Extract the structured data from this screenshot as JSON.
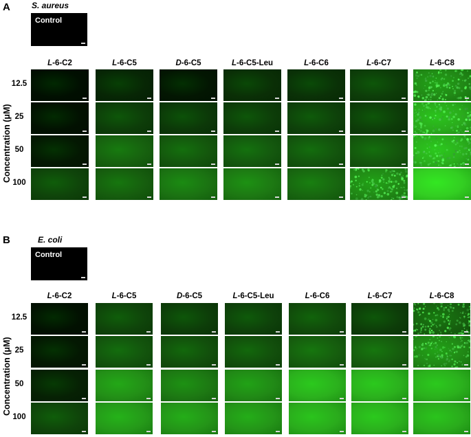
{
  "panels": [
    {
      "letter": "A",
      "organism": "S. aureus",
      "control_label": "Control",
      "y_axis_label": "Concentration (μM)",
      "columns": [
        {
          "prefix": "L",
          "suffix": "-6-C2"
        },
        {
          "prefix": "L",
          "suffix": "-6-C5"
        },
        {
          "prefix": "D",
          "suffix": "-6-C5"
        },
        {
          "prefix": "L",
          "suffix": "-6-C5-Leu"
        },
        {
          "prefix": "L",
          "suffix": "-6-C6"
        },
        {
          "prefix": "L",
          "suffix": "-6-C7"
        },
        {
          "prefix": "L",
          "suffix": "-6-C8"
        }
      ],
      "rows": [
        "12.5",
        "25",
        "50",
        "100"
      ],
      "fluorescence_intensity": [
        [
          0.02,
          0.12,
          0.05,
          0.16,
          0.17,
          0.22,
          0.55
        ],
        [
          0.03,
          0.22,
          0.2,
          0.22,
          0.24,
          0.22,
          0.7
        ],
        [
          0.06,
          0.38,
          0.33,
          0.34,
          0.32,
          0.33,
          0.72
        ],
        [
          0.25,
          0.36,
          0.45,
          0.48,
          0.4,
          0.55,
          0.85
        ]
      ],
      "speckled": [
        [
          false,
          false,
          false,
          false,
          false,
          false,
          true
        ],
        [
          false,
          false,
          false,
          false,
          false,
          false,
          true
        ],
        [
          false,
          false,
          false,
          false,
          false,
          false,
          true
        ],
        [
          false,
          false,
          false,
          false,
          false,
          true,
          false
        ]
      ]
    },
    {
      "letter": "B",
      "organism": "E. coli",
      "control_label": "Control",
      "y_axis_label": "Concentration (μM)",
      "columns": [
        {
          "prefix": "L",
          "suffix": "-6-C2"
        },
        {
          "prefix": "L",
          "suffix": "-6-C5"
        },
        {
          "prefix": "D",
          "suffix": "-6-C5"
        },
        {
          "prefix": "L",
          "suffix": "-6-C5-Leu"
        },
        {
          "prefix": "L",
          "suffix": "-6-C6"
        },
        {
          "prefix": "L",
          "suffix": "-6-C7"
        },
        {
          "prefix": "L",
          "suffix": "-6-C8"
        }
      ],
      "rows": [
        "12.5",
        "25",
        "50",
        "100"
      ],
      "fluorescence_intensity": [
        [
          0.03,
          0.25,
          0.22,
          0.24,
          0.28,
          0.22,
          0.38
        ],
        [
          0.06,
          0.32,
          0.3,
          0.3,
          0.36,
          0.36,
          0.55
        ],
        [
          0.1,
          0.58,
          0.48,
          0.55,
          0.72,
          0.72,
          0.72
        ],
        [
          0.25,
          0.62,
          0.6,
          0.6,
          0.7,
          0.72,
          0.7
        ]
      ],
      "speckled": [
        [
          false,
          false,
          false,
          false,
          false,
          false,
          true
        ],
        [
          false,
          false,
          false,
          false,
          false,
          false,
          true
        ],
        [
          false,
          false,
          false,
          false,
          false,
          false,
          false
        ],
        [
          false,
          false,
          false,
          false,
          false,
          false,
          false
        ]
      ]
    }
  ]
}
